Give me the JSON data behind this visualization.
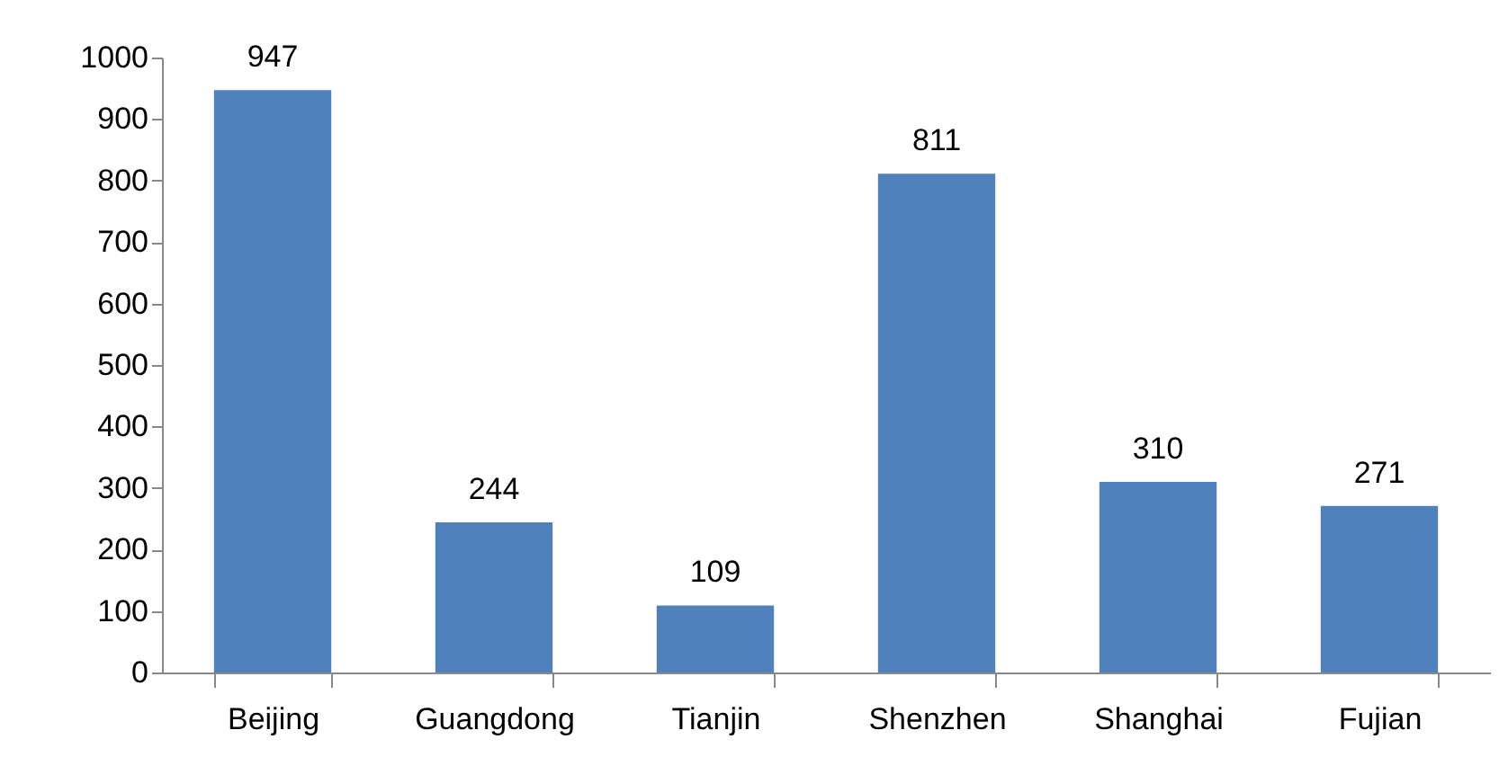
{
  "chart_data": {
    "type": "bar",
    "categories": [
      "Beijing",
      "Guangdong",
      "Tianjin",
      "Shenzhen",
      "Shanghai",
      "Fujian"
    ],
    "values": [
      947,
      244,
      109,
      811,
      310,
      271
    ],
    "color": "#4f81bd",
    "ylim": [
      0,
      1000
    ],
    "yticks": [
      0,
      100,
      200,
      300,
      400,
      500,
      600,
      700,
      800,
      900,
      1000
    ],
    "data_labels": true
  }
}
